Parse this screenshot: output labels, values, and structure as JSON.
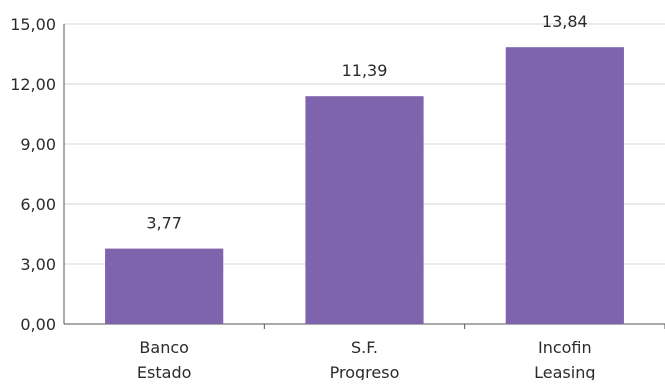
{
  "chart_data": {
    "type": "bar",
    "categories": [
      [
        "Banco",
        "Estado"
      ],
      [
        "S.F.",
        "Progreso"
      ],
      [
        "Incofin",
        "Leasing"
      ]
    ],
    "values": [
      3.77,
      11.39,
      13.84
    ],
    "data_labels": [
      "3,77",
      "11,39",
      "13,84"
    ],
    "ylim": [
      0,
      15
    ],
    "yticks": [
      0,
      3,
      6,
      9,
      12,
      15
    ],
    "ytick_labels": [
      "0,00",
      "3,00",
      "6,00",
      "9,00",
      "12,00",
      "15,00"
    ],
    "grid": true,
    "title": "",
    "xlabel": "",
    "ylabel": "",
    "colors": {
      "bar": "#7d64ac",
      "grid": "#d5d5d5",
      "axis": "#555555"
    }
  }
}
